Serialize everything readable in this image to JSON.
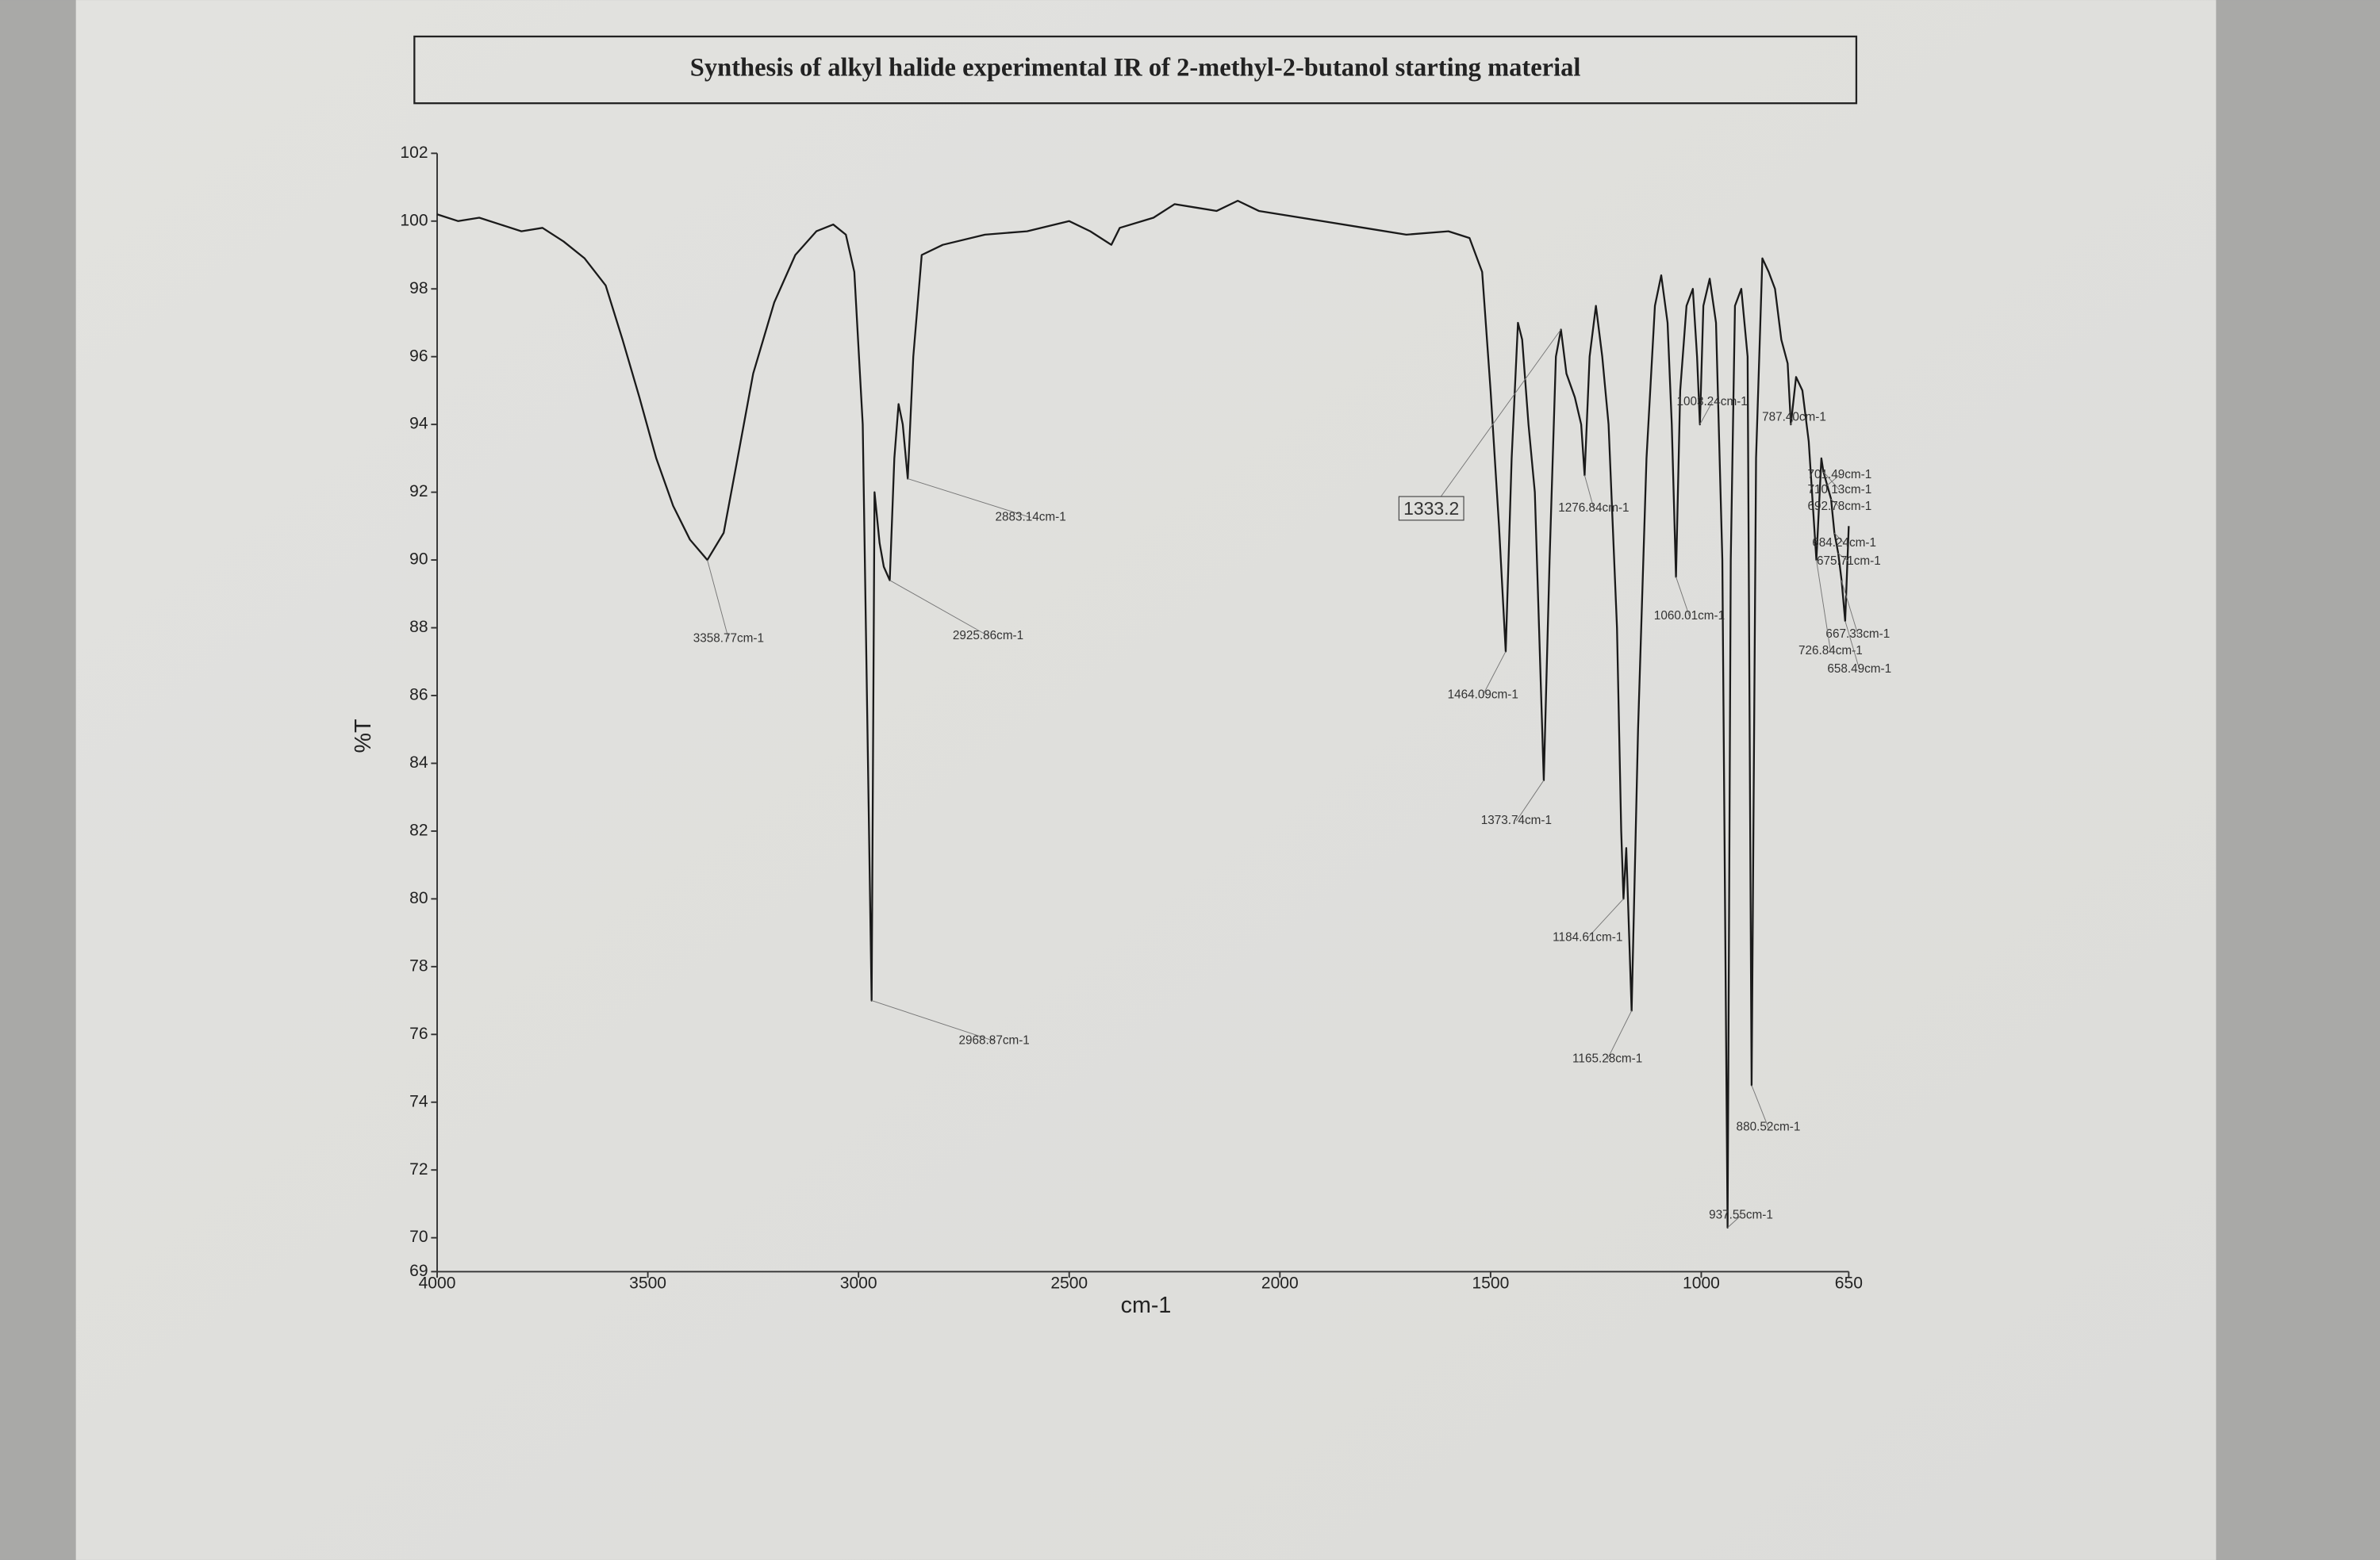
{
  "chart_data": {
    "type": "line",
    "title": "Synthesis of alkyl halide experimental IR of 2-methyl-2-butanol starting material",
    "xlabel": "cm-1",
    "ylabel": "%T",
    "color": "#1a1a1a",
    "xlim": [
      4000,
      650
    ],
    "ylim": [
      69,
      102
    ],
    "xticks": [
      4000,
      3500,
      3000,
      2500,
      2000,
      1500,
      1000,
      650
    ],
    "yticks": [
      69,
      70,
      72,
      74,
      76,
      78,
      80,
      82,
      84,
      86,
      88,
      90,
      92,
      94,
      96,
      98,
      100,
      102
    ],
    "x": [
      4000,
      3950,
      3900,
      3850,
      3800,
      3750,
      3700,
      3650,
      3600,
      3560,
      3520,
      3480,
      3440,
      3400,
      3358.77,
      3320,
      3290,
      3250,
      3200,
      3150,
      3100,
      3060,
      3030,
      3010,
      2990,
      2980,
      2968.87,
      2962,
      2950,
      2940,
      2925.86,
      2915,
      2905,
      2895,
      2883.14,
      2870,
      2850,
      2800,
      2700,
      2600,
      2500,
      2450,
      2400,
      2380,
      2300,
      2250,
      2200,
      2150,
      2100,
      2050,
      2000,
      1900,
      1800,
      1700,
      1600,
      1550,
      1520,
      1500,
      1480,
      1464.09,
      1450,
      1435,
      1425,
      1410,
      1395,
      1385,
      1373.74,
      1360,
      1345,
      1333,
      1320,
      1300,
      1285,
      1276.84,
      1265,
      1250,
      1235,
      1220,
      1200,
      1190,
      1184.61,
      1178,
      1165.28,
      1150,
      1130,
      1110,
      1095,
      1080,
      1070,
      1060.01,
      1050,
      1035,
      1020,
      1010,
      1003.24,
      995,
      980,
      965,
      950,
      937.55,
      930,
      920,
      905,
      890,
      880.52,
      870,
      855,
      840,
      825,
      810,
      795,
      787.4,
      775,
      760,
      745,
      726.84,
      715,
      710,
      701,
      692,
      684,
      675,
      667,
      658.49,
      650
    ],
    "values": [
      100.2,
      100,
      100.1,
      99.9,
      99.7,
      99.8,
      99.4,
      98.9,
      98.1,
      96.5,
      94.8,
      93,
      91.6,
      90.6,
      90,
      90.8,
      92.8,
      95.5,
      97.6,
      99,
      99.7,
      99.9,
      99.6,
      98.5,
      94,
      86,
      77,
      92,
      90.5,
      89.8,
      89.4,
      93,
      94.6,
      94,
      92.4,
      96,
      99,
      99.3,
      99.6,
      99.7,
      100,
      99.7,
      99.3,
      99.8,
      100.1,
      100.5,
      100.4,
      100.3,
      100.6,
      100.3,
      100.2,
      100,
      99.8,
      99.6,
      99.7,
      99.5,
      98.5,
      95,
      91,
      87.3,
      93,
      97,
      96.5,
      94,
      92,
      88,
      83.5,
      90,
      96,
      96.8,
      95.5,
      94.8,
      94,
      92.5,
      96,
      97.5,
      96,
      94,
      88,
      82,
      80,
      81.5,
      76.7,
      85,
      93,
      97.5,
      98.4,
      97,
      94,
      89.5,
      95,
      97.5,
      98,
      96,
      94,
      97.5,
      98.3,
      97,
      90,
      70.3,
      90,
      97.5,
      98,
      96,
      74.5,
      93,
      98.9,
      98.5,
      98,
      96.5,
      95.8,
      94,
      95.4,
      95,
      93.5,
      90,
      93,
      92.6,
      92.2,
      91.8,
      90.8,
      90.2,
      89.4,
      88.2,
      91
    ],
    "annotations": [
      {
        "text": "3358.77cm-1",
        "x": 3358.77,
        "y": 90
      },
      {
        "text": "2968.87cm-1",
        "x": 2968.87,
        "y": 77
      },
      {
        "text": "2925.86cm-1",
        "x": 2925.86,
        "y": 89.4
      },
      {
        "text": "2883.14cm-1",
        "x": 2883.14,
        "y": 92.4
      },
      {
        "text": "1464.09cm-1",
        "x": 1464.09,
        "y": 87.3
      },
      {
        "text": "1373.74cm-1",
        "x": 1373.74,
        "y": 83.5
      },
      {
        "text": "1333.2",
        "x": 1333.2,
        "y": 96.8
      },
      {
        "text": "1276.84cm-1",
        "x": 1276.84,
        "y": 92.5
      },
      {
        "text": "1184.61cm-1",
        "x": 1184.61,
        "y": 80
      },
      {
        "text": "1165.28cm-1",
        "x": 1165.28,
        "y": 76.7
      },
      {
        "text": "1060.01cm-1",
        "x": 1060.01,
        "y": 89.5
      },
      {
        "text": "1003.24cm-1",
        "x": 1003.24,
        "y": 94
      },
      {
        "text": "937.55cm-1",
        "x": 937.55,
        "y": 70.3
      },
      {
        "text": "880.52cm-1",
        "x": 880.52,
        "y": 74.5
      },
      {
        "text": "787.40cm-1",
        "x": 787.4,
        "y": 94
      },
      {
        "text": "701.49cm-1",
        "x": 701.49,
        "y": 92.2
      },
      {
        "text": "710.13cm-1",
        "x": 710.13,
        "y": 92.6
      },
      {
        "text": "692.78cm-1",
        "x": 692.78,
        "y": 91.8
      },
      {
        "text": "684.24cm-1",
        "x": 684.24,
        "y": 90.8
      },
      {
        "text": "675.71cm-1",
        "x": 675.71,
        "y": 90.2
      },
      {
        "text": "667.33cm-1",
        "x": 667.33,
        "y": 89.4
      },
      {
        "text": "726.84cm-1",
        "x": 726.84,
        "y": 90
      },
      {
        "text": "658.49cm-1",
        "x": 658.49,
        "y": 88.2
      }
    ]
  }
}
